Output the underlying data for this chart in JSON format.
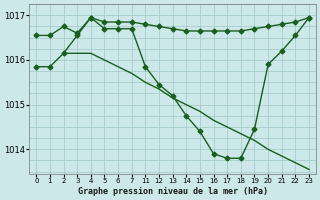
{
  "background_color": "#cce8e8",
  "grid_color": "#a8cccc",
  "line_color": "#1a5e20",
  "title": "Graphe pression niveau de la mer (hPa)",
  "x_labels": [
    "0",
    "1",
    "2",
    "3",
    "4",
    "5",
    "6",
    "7",
    "11",
    "12",
    "13",
    "14",
    "15",
    "16",
    "17",
    "18",
    "19",
    "20",
    "21",
    "22",
    "23"
  ],
  "line1_x": [
    0,
    1,
    2,
    3,
    4,
    5,
    6,
    7,
    8,
    9,
    10,
    11,
    12,
    13,
    14,
    15,
    16,
    17,
    18,
    19,
    20
  ],
  "line1_y": [
    1016.55,
    1016.55,
    1016.75,
    1016.6,
    1016.95,
    1016.85,
    1016.85,
    1016.85,
    1016.8,
    1016.75,
    1016.7,
    1016.65,
    1016.65,
    1016.65,
    1016.65,
    1016.65,
    1016.7,
    1016.75,
    1016.8,
    1016.85,
    1016.95
  ],
  "line2_x": [
    0,
    1,
    2,
    3,
    4,
    5,
    6,
    7,
    8,
    9,
    10,
    11,
    12,
    13,
    14,
    15,
    16,
    17,
    18,
    19,
    20
  ],
  "line2_y": [
    1015.85,
    1015.85,
    1016.15,
    1016.55,
    1016.95,
    1016.7,
    1016.7,
    1016.7,
    1015.85,
    1015.45,
    1015.2,
    1014.75,
    1014.4,
    1013.9,
    1013.8,
    1013.8,
    1014.45,
    1015.9,
    1016.2,
    1016.55,
    1016.95
  ],
  "line3_x": [
    2,
    3,
    4,
    5,
    6,
    7,
    8,
    9,
    10,
    11,
    12,
    13,
    14,
    15,
    16,
    17,
    18,
    19,
    20
  ],
  "line3_y": [
    1016.15,
    1016.15,
    1016.15,
    1016.0,
    1015.85,
    1015.7,
    1015.5,
    1015.35,
    1015.15,
    1015.0,
    1014.85,
    1014.65,
    1014.5,
    1014.35,
    1014.2,
    1014.0,
    1013.85,
    1013.7,
    1013.55
  ],
  "ylim": [
    1013.45,
    1017.25
  ],
  "yticks": [
    1014,
    1015,
    1016,
    1017
  ],
  "markersize": 2.5,
  "linewidth": 1.0
}
